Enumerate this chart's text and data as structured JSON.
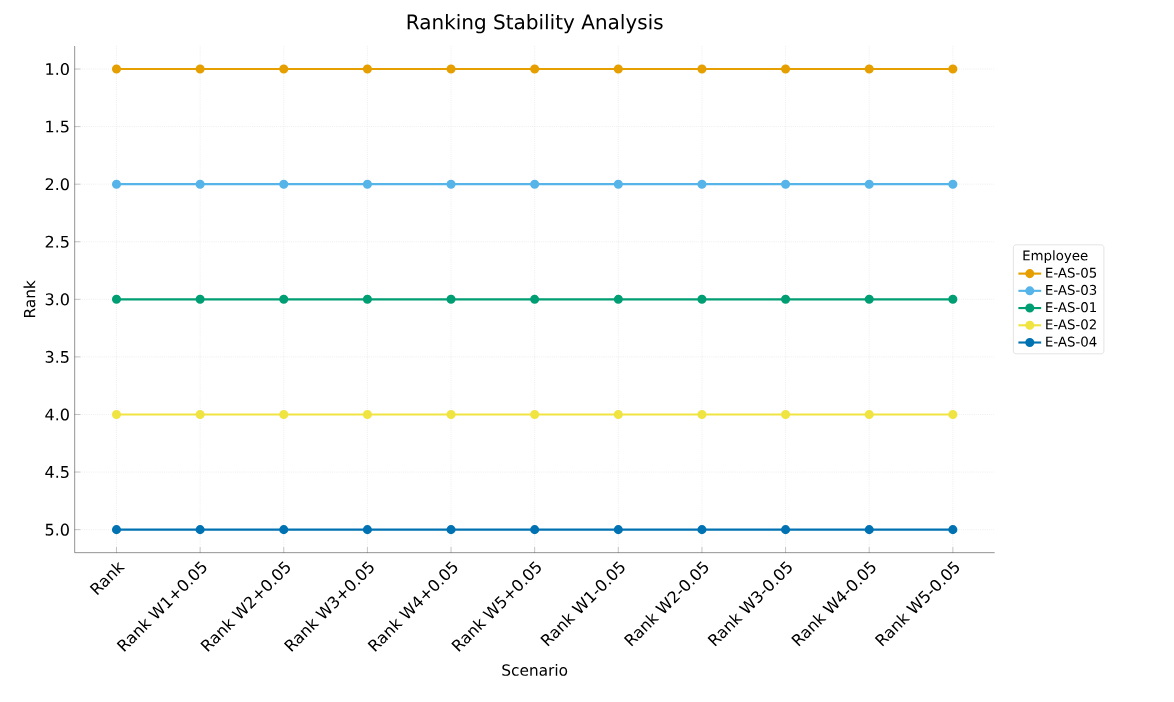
{
  "chart_data": {
    "type": "line",
    "title": "Ranking Stability Analysis",
    "xlabel": "Scenario",
    "ylabel": "Rank",
    "legend_title": "Employee",
    "categories": [
      "Rank",
      "Rank W1+0.05",
      "Rank W2+0.05",
      "Rank W3+0.05",
      "Rank W4+0.05",
      "Rank W5+0.05",
      "Rank W1-0.05",
      "Rank W2-0.05",
      "Rank W3-0.05",
      "Rank W4-0.05",
      "Rank W5-0.05"
    ],
    "series": [
      {
        "name": "E-AS-05",
        "color": "#e69f00",
        "values": [
          1,
          1,
          1,
          1,
          1,
          1,
          1,
          1,
          1,
          1,
          1
        ]
      },
      {
        "name": "E-AS-03",
        "color": "#56b4e9",
        "values": [
          2,
          2,
          2,
          2,
          2,
          2,
          2,
          2,
          2,
          2,
          2
        ]
      },
      {
        "name": "E-AS-01",
        "color": "#009e73",
        "values": [
          3,
          3,
          3,
          3,
          3,
          3,
          3,
          3,
          3,
          3,
          3
        ]
      },
      {
        "name": "E-AS-02",
        "color": "#f0e442",
        "values": [
          4,
          4,
          4,
          4,
          4,
          4,
          4,
          4,
          4,
          4,
          4
        ]
      },
      {
        "name": "E-AS-04",
        "color": "#0072b2",
        "values": [
          5,
          5,
          5,
          5,
          5,
          5,
          5,
          5,
          5,
          5,
          5
        ]
      }
    ],
    "ylim": [
      5.2,
      0.8
    ],
    "yticks": [
      {
        "value": 1,
        "label": "1.0"
      },
      {
        "value": 1.5,
        "label": "1.5"
      },
      {
        "value": 2,
        "label": "2.0"
      },
      {
        "value": 2.5,
        "label": "2.5"
      },
      {
        "value": 3,
        "label": "3.0"
      },
      {
        "value": 3.5,
        "label": "3.5"
      },
      {
        "value": 4,
        "label": "4.0"
      },
      {
        "value": 4.5,
        "label": "4.5"
      },
      {
        "value": 5,
        "label": "5.0"
      }
    ],
    "grid": true,
    "legend": "right",
    "marker": "circle",
    "line_style": "solid"
  }
}
